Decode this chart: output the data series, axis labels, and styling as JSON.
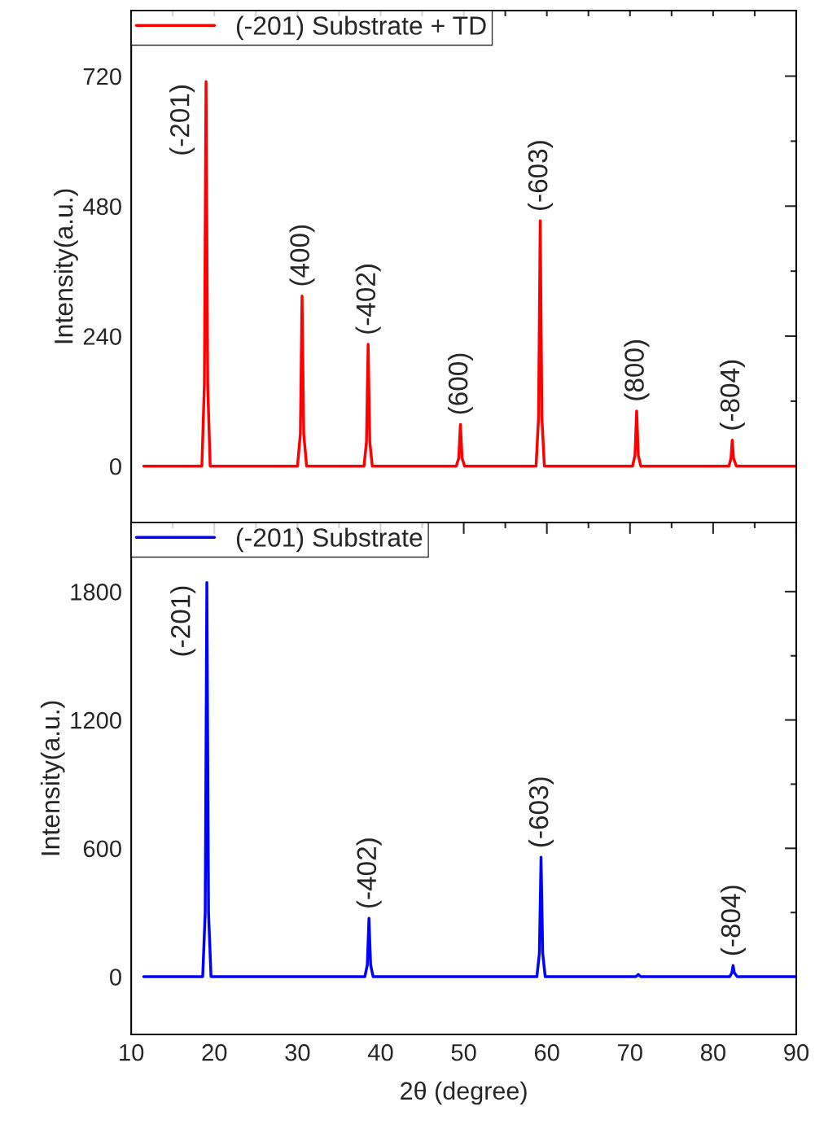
{
  "chart_data": [
    {
      "type": "line",
      "ylabel": "Intensity(a.u.)",
      "xlim": [
        10,
        90
      ],
      "ylim": [
        -104,
        841
      ],
      "xticks": [
        {
          "value": 10,
          "label": null
        },
        {
          "value": 15,
          "label": null
        },
        {
          "value": 20,
          "label": null
        },
        {
          "value": 25,
          "label": null
        },
        {
          "value": 30,
          "label": null
        },
        {
          "value": 35,
          "label": null
        },
        {
          "value": 40,
          "label": null
        },
        {
          "value": 45,
          "label": null
        },
        {
          "value": 50,
          "label": null
        },
        {
          "value": 55,
          "label": null
        },
        {
          "value": 60,
          "label": null
        },
        {
          "value": 65,
          "label": null
        },
        {
          "value": 70,
          "label": null
        },
        {
          "value": 75,
          "label": null
        },
        {
          "value": 80,
          "label": null
        },
        {
          "value": 85,
          "label": null
        },
        {
          "value": 90,
          "label": null
        }
      ],
      "yticks": [
        0,
        {
          "value": 120,
          "label": null
        },
        240,
        {
          "value": 360,
          "label": null
        },
        480,
        {
          "value": 600,
          "label": null
        },
        720
      ],
      "tick_labels": "y",
      "legend": "top left",
      "grid": false,
      "marker": "none",
      "line_style": "solid",
      "series": [
        {
          "name": "(-201) Substrate + TD",
          "color": "#ff0000",
          "x": [
            11.5,
            18.5,
            18.8,
            19.0,
            19.2,
            19.5,
            30.0,
            30.35,
            30.55,
            30.75,
            31.1,
            38.0,
            38.3,
            38.5,
            38.7,
            39.0,
            49.1,
            49.4,
            49.6,
            49.8,
            50.1,
            58.7,
            59.0,
            59.2,
            59.4,
            59.7,
            70.3,
            70.6,
            70.8,
            71.0,
            71.3,
            81.9,
            82.15,
            82.3,
            82.45,
            82.8,
            90.0
          ],
          "values": [
            0,
            0,
            150,
            710,
            150,
            0,
            0,
            60,
            314,
            60,
            0,
            0,
            45,
            225,
            45,
            0,
            0,
            15,
            77,
            15,
            0,
            0,
            90,
            453,
            90,
            0,
            0,
            20,
            102,
            20,
            0,
            0,
            15,
            48,
            15,
            0,
            0
          ]
        }
      ],
      "annotations": [
        {
          "text": "(-201)",
          "x": 19.0,
          "y": 710
        },
        {
          "text": "(400)",
          "x": 30.55,
          "y": 314
        },
        {
          "text": "(-402)",
          "x": 38.5,
          "y": 225
        },
        {
          "text": "(600)",
          "x": 49.6,
          "y": 77
        },
        {
          "text": "(-603)",
          "x": 59.2,
          "y": 453
        },
        {
          "text": "(800)",
          "x": 70.8,
          "y": 102
        },
        {
          "text": "(-804)",
          "x": 82.3,
          "y": 48
        }
      ]
    },
    {
      "type": "line",
      "ylabel": "Intensity(a.u.)",
      "xlabel": "2θ (degree)",
      "xlim": [
        10,
        90
      ],
      "ylim": [
        -270,
        2123
      ],
      "xticks": [
        10,
        {
          "value": 15,
          "label": null
        },
        20,
        {
          "value": 25,
          "label": null
        },
        30,
        {
          "value": 35,
          "label": null
        },
        40,
        {
          "value": 45,
          "label": null
        },
        50,
        {
          "value": 55,
          "label": null
        },
        60,
        {
          "value": 65,
          "label": null
        },
        70,
        {
          "value": 75,
          "label": null
        },
        80,
        {
          "value": 85,
          "label": null
        },
        90
      ],
      "yticks": [
        0,
        {
          "value": 300,
          "label": null
        },
        600,
        {
          "value": 900,
          "label": null
        },
        1200,
        {
          "value": 1500,
          "label": null
        },
        1800
      ],
      "legend": "top left",
      "grid": false,
      "marker": "none",
      "line_style": "solid",
      "series": [
        {
          "name": "(-201) Substrate",
          "color": "#0000ff",
          "x": [
            11.5,
            18.6,
            18.9,
            19.1,
            19.3,
            19.6,
            38.1,
            38.4,
            38.6,
            38.8,
            39.1,
            58.8,
            59.1,
            59.3,
            59.5,
            59.8,
            70.7,
            71.0,
            71.3,
            82.0,
            82.25,
            82.4,
            82.55,
            82.9,
            90.0
          ],
          "values": [
            0,
            0,
            300,
            1842,
            300,
            0,
            0,
            55,
            273,
            55,
            0,
            0,
            110,
            558,
            110,
            0,
            0,
            10,
            0,
            0,
            18,
            52,
            18,
            0,
            0
          ]
        }
      ],
      "annotations": [
        {
          "text": "(-201)",
          "x": 19.1,
          "y": 1842
        },
        {
          "text": "(-402)",
          "x": 38.6,
          "y": 273
        },
        {
          "text": "(-603)",
          "x": 59.3,
          "y": 558
        },
        {
          "text": "(-804)",
          "x": 82.4,
          "y": 52
        }
      ]
    }
  ]
}
